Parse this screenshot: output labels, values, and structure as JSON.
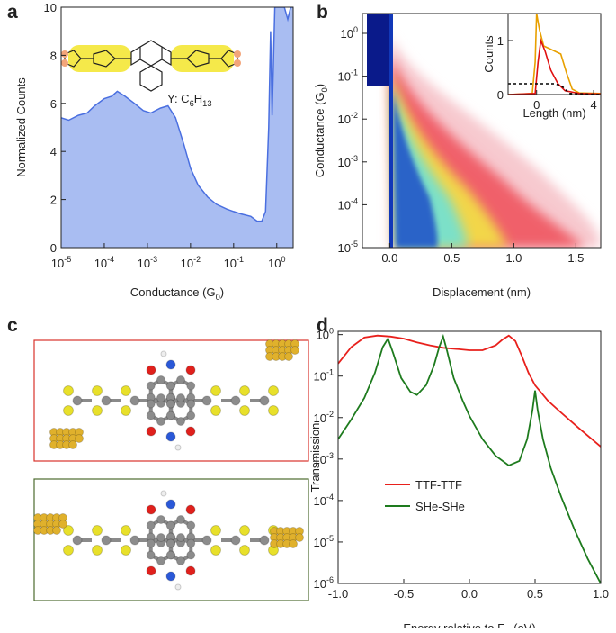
{
  "panel_labels": [
    "a",
    "b",
    "c",
    "d"
  ],
  "molecule_label": [
    {
      "text": "Y: C"
    },
    {
      "text": "6",
      "sub": true
    },
    {
      "text": "H"
    },
    {
      "text": "13",
      "sub": true
    }
  ],
  "chart_data": [
    {
      "type": "area",
      "xlog": true,
      "x": [
        1e-05,
        1.5e-05,
        2.5e-05,
        4e-05,
        6e-05,
        0.0001,
        0.00015,
        0.0002,
        0.0003,
        0.0005,
        0.0008,
        0.0012,
        0.002,
        0.003,
        0.0045,
        0.007,
        0.01,
        0.015,
        0.025,
        0.04,
        0.07,
        0.1,
        0.15,
        0.25,
        0.35,
        0.45,
        0.55,
        0.65,
        0.72,
        0.78,
        0.9,
        1.2,
        1.5,
        1.8,
        2.1,
        2.4
      ],
      "values": [
        5.4,
        5.3,
        5.5,
        5.6,
        5.9,
        6.2,
        6.3,
        6.5,
        6.3,
        6.0,
        5.7,
        5.6,
        5.8,
        5.9,
        5.4,
        4.3,
        3.3,
        2.6,
        2.1,
        1.8,
        1.6,
        1.5,
        1.4,
        1.3,
        1.1,
        1.1,
        1.5,
        5.0,
        9.0,
        5.5,
        10,
        10,
        10,
        9.5,
        10,
        10
      ],
      "color": "#a9bdf2",
      "line_color": "#4a6fe0",
      "xlim": [
        1e-05,
        2.4
      ],
      "ylim": [
        0,
        10
      ],
      "xticks": [
        {
          "value": 1e-05,
          "label": [
            "10",
            "-5"
          ]
        },
        {
          "value": 0.0001,
          "label": [
            "10",
            "-4"
          ]
        },
        {
          "value": 0.001,
          "label": [
            "10",
            "-3"
          ]
        },
        {
          "value": 0.01,
          "label": [
            "10",
            "-2"
          ]
        },
        {
          "value": 0.1,
          "label": [
            "10",
            "-1"
          ]
        },
        {
          "value": 1,
          "label": [
            "10",
            "0"
          ]
        }
      ],
      "yticks": [
        0,
        2,
        4,
        6,
        8,
        10
      ],
      "xlabel": [
        {
          "text": "Conductance (G"
        },
        {
          "text": "0",
          "sub": true
        },
        {
          "text": ")"
        }
      ],
      "ylabel": [
        {
          "text": "Normalized Counts"
        }
      ]
    },
    {
      "type": "heatmap",
      "ylog": true,
      "xlim": [
        -0.22,
        1.7
      ],
      "ylim": [
        1e-05,
        2.9
      ],
      "xticks": [
        {
          "value": 0,
          "label": "0.0"
        },
        0.5,
        {
          "value": 1,
          "label": "1.0"
        },
        1.5
      ],
      "yticks": [
        {
          "value": 1,
          "label": [
            "10",
            "0"
          ]
        },
        {
          "value": 0.1,
          "label": [
            "10",
            "-1"
          ]
        },
        {
          "value": 0.01,
          "label": [
            "10",
            "-2"
          ]
        },
        {
          "value": 0.001,
          "label": [
            "10",
            "-3"
          ]
        },
        {
          "value": 0.0001,
          "label": [
            "10",
            "-4"
          ]
        },
        {
          "value": 1e-05,
          "label": [
            "10",
            "-5"
          ]
        }
      ],
      "xlabel": [
        {
          "text": "Displacement (nm)"
        }
      ],
      "ylabel": [
        {
          "text": "Conductance (G"
        },
        {
          "text": "0",
          "sub": true
        },
        {
          "text": ")"
        }
      ]
    },
    {
      "type": "line",
      "xlim": [
        -2,
        4.5
      ],
      "ylim": [
        0,
        1.5
      ],
      "xticks": [
        0,
        4
      ],
      "yticks": [
        0,
        1
      ],
      "xlabel": [
        {
          "text": "Length (nm)"
        }
      ],
      "ylabel": [
        {
          "text": "Counts"
        }
      ],
      "series": [
        {
          "color": "#e8a000",
          "x": [
            -2,
            -0.3,
            -0.1,
            0,
            0.2,
            0.5,
            0.9,
            1.3,
            1.7,
            2.1,
            2.5,
            3,
            4.5
          ],
          "values": [
            0,
            0.02,
            0.6,
            1.5,
            1.2,
            0.9,
            0.85,
            0.8,
            0.75,
            0.4,
            0.1,
            0.03,
            0.02
          ]
        },
        {
          "color": "#e01010",
          "x": [
            -2,
            -0.1,
            0.1,
            0.3,
            0.6,
            1,
            1.5,
            2,
            3,
            4.5
          ],
          "values": [
            0,
            0.02,
            0.6,
            1.0,
            0.8,
            0.45,
            0.2,
            0.07,
            0.02,
            0.01
          ]
        },
        {
          "color": "#000000",
          "dashed": true,
          "x": [
            -2,
            1.3,
            1.8,
            2.3,
            4.5
          ],
          "values": [
            0.2,
            0.2,
            0.15,
            0.02,
            0
          ]
        }
      ]
    },
    {
      "type": "line",
      "ylog": true,
      "xlim": [
        -1,
        1
      ],
      "ylim": [
        1e-06,
        1.2
      ],
      "xticks": [
        {
          "value": -1,
          "label": "-1.0"
        },
        -0.5,
        {
          "value": 0,
          "label": "0.0"
        },
        0.5,
        {
          "value": 1,
          "label": "1.0"
        }
      ],
      "yticks": [
        {
          "value": 1,
          "label": [
            "10",
            "0"
          ]
        },
        {
          "value": 0.1,
          "label": [
            "10",
            "-1"
          ]
        },
        {
          "value": 0.01,
          "label": [
            "10",
            "-2"
          ]
        },
        {
          "value": 0.001,
          "label": [
            "10",
            "-3"
          ]
        },
        {
          "value": 0.0001,
          "label": [
            "10",
            "-4"
          ]
        },
        {
          "value": 1e-05,
          "label": [
            "10",
            "-5"
          ]
        },
        {
          "value": 1e-06,
          "label": [
            "10",
            "-6"
          ]
        }
      ],
      "xlabel": [
        {
          "text": "Energy relative to E"
        },
        {
          "text": "F",
          "sub": true
        },
        {
          "text": " (eV)"
        }
      ],
      "ylabel": [
        {
          "text": "Transmission"
        }
      ],
      "legend": "lower left",
      "series": [
        {
          "name": "TTF-TTF",
          "color": "#e8201c",
          "x": [
            -1,
            -0.9,
            -0.8,
            -0.7,
            -0.6,
            -0.5,
            -0.4,
            -0.3,
            -0.2,
            -0.1,
            0,
            0.1,
            0.2,
            0.25,
            0.3,
            0.35,
            0.4,
            0.45,
            0.5,
            0.6,
            0.7,
            0.85,
            1
          ],
          "values": [
            0.2,
            0.5,
            0.85,
            0.95,
            0.9,
            0.8,
            0.65,
            0.55,
            0.48,
            0.45,
            0.42,
            0.42,
            0.55,
            0.75,
            0.95,
            0.7,
            0.3,
            0.12,
            0.06,
            0.025,
            0.013,
            0.005,
            0.002
          ]
        },
        {
          "name": "SHe-SHe",
          "color": "#1e7b1e",
          "x": [
            -1,
            -0.9,
            -0.8,
            -0.72,
            -0.66,
            -0.62,
            -0.58,
            -0.52,
            -0.45,
            -0.4,
            -0.33,
            -0.27,
            -0.23,
            -0.2,
            -0.17,
            -0.12,
            -0.05,
            0,
            0.1,
            0.2,
            0.3,
            0.38,
            0.44,
            0.48,
            0.5,
            0.52,
            0.56,
            0.62,
            0.7,
            0.8,
            0.9,
            1
          ],
          "values": [
            0.003,
            0.009,
            0.03,
            0.12,
            0.5,
            0.8,
            0.35,
            0.09,
            0.042,
            0.035,
            0.06,
            0.18,
            0.5,
            0.9,
            0.4,
            0.09,
            0.025,
            0.011,
            0.003,
            0.0012,
            0.0007,
            0.0009,
            0.003,
            0.015,
            0.045,
            0.015,
            0.003,
            0.0006,
            0.00012,
            2e-05,
            4e-06,
            1e-06
          ]
        }
      ]
    }
  ]
}
